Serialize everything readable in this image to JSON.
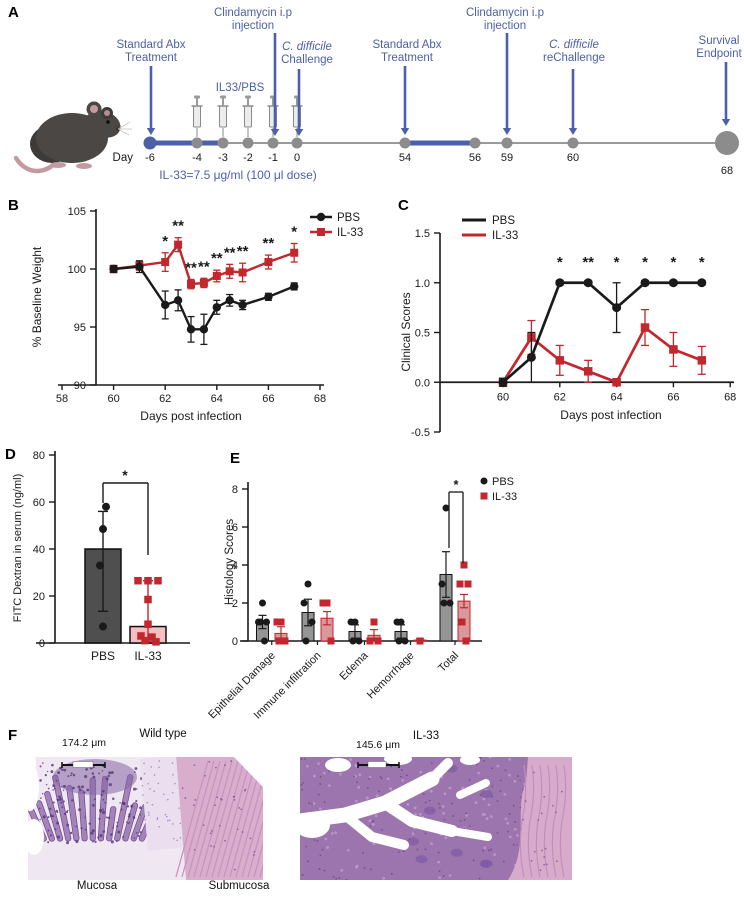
{
  "panels": {
    "a": "A",
    "b": "B",
    "c": "C",
    "d": "D",
    "e": "E",
    "f": "F"
  },
  "colors": {
    "blue": "#4C5FA8",
    "red": "#C1272D",
    "red_bar_fill": "#F4BFC3",
    "red_bar_fill_e": "#D88F93",
    "gray_bar": "#4F4F4F",
    "gray_bar_e": "#8C8C8C",
    "dot_gray": "#8C8C8C",
    "black": "#1A1A1A"
  },
  "panelA": {
    "day_axis_label": "Day",
    "syringe_group_label": "IL33/PBS",
    "dose_note": "IL-33=7.5 μg/ml (100 μl dose)",
    "timeline_days": [
      "-6",
      "-4",
      "-3",
      "-2",
      "-1",
      "0",
      "54",
      "56",
      "59",
      "60",
      "68"
    ],
    "syringe_days": [
      "-4",
      "-3",
      "-2",
      "-1",
      "0"
    ],
    "blue_segments": [
      [
        "-6",
        "-3"
      ],
      [
        "54",
        "56"
      ]
    ],
    "survival_day": "68",
    "events": [
      {
        "line1": "Standard Abx",
        "line2": "Treatment",
        "day": "-6",
        "italic1": false
      },
      {
        "line1": "Clindamycin i.p",
        "line2": "injection",
        "day": "-1",
        "italic1": false
      },
      {
        "line1": "C. difficile",
        "line2": "Challenge",
        "day": "0",
        "italic1": true
      },
      {
        "line1": "Standard Abx",
        "line2": "Treatment",
        "day": "54",
        "italic1": false
      },
      {
        "line1": "Clindamycin i.p",
        "line2": "injection",
        "day": "59",
        "italic1": false
      },
      {
        "line1": "C. difficile",
        "line2": "reChallenge",
        "day": "60",
        "italic1": true
      },
      {
        "line1": "Survival",
        "line2": "Endpoint",
        "day": "68",
        "italic1": false
      }
    ]
  },
  "chart_data": [
    {
      "id": "weight",
      "panel": "B",
      "type": "line",
      "xlabel": "Days post infection",
      "ylabel": "% Baseline Weight",
      "xlim": [
        58,
        68
      ],
      "ylim": [
        90,
        105
      ],
      "xticks": [
        58,
        60,
        62,
        64,
        66,
        68
      ],
      "xtick_labels": [
        "58",
        "60",
        "62",
        "64",
        "66",
        "68"
      ],
      "yticks": [
        90,
        95,
        100,
        105
      ],
      "ytick_labels": [
        "90",
        "95",
        "100",
        "105"
      ],
      "x": [
        60,
        61,
        62,
        62.5,
        63,
        63.5,
        64,
        64.5,
        65,
        66,
        67
      ],
      "series": [
        {
          "name": "PBS",
          "marker": "circle",
          "values": [
            100,
            100.2,
            96.9,
            97.3,
            94.8,
            94.8,
            96.7,
            97.3,
            96.9,
            97.6,
            98.5
          ],
          "err": [
            0.3,
            0.5,
            1.2,
            0.9,
            1.1,
            1.3,
            0.6,
            0.5,
            0.4,
            0.3,
            0.3
          ]
        },
        {
          "name": "IL-33",
          "marker": "square",
          "values": [
            100,
            100.3,
            100.6,
            102.1,
            98.7,
            98.8,
            99.4,
            99.8,
            99.7,
            100.6,
            101.4
          ],
          "err": [
            0.3,
            0.4,
            0.8,
            0.6,
            0.4,
            0.4,
            0.5,
            0.6,
            0.8,
            0.6,
            0.8
          ]
        }
      ],
      "significance": [
        {
          "x": 62,
          "label": "*"
        },
        {
          "x": 62.5,
          "label": "**"
        },
        {
          "x": 63,
          "label": "**"
        },
        {
          "x": 63.5,
          "label": "**"
        },
        {
          "x": 64,
          "label": "**"
        },
        {
          "x": 64.5,
          "label": "**"
        },
        {
          "x": 65,
          "label": "**"
        },
        {
          "x": 66,
          "label": "**"
        },
        {
          "x": 67,
          "label": "*"
        }
      ],
      "legend": [
        "PBS",
        "IL-33"
      ],
      "legend_position": "top-right",
      "grid": false
    },
    {
      "id": "clinical",
      "panel": "C",
      "type": "line",
      "xlabel": "Days post infection",
      "ylabel": "Clinical Scores",
      "xlim": [
        58.5,
        68
      ],
      "ylim": [
        -0.5,
        1.5
      ],
      "xticks": [
        60,
        62,
        64,
        66,
        68
      ],
      "xtick_labels": [
        "60",
        "62",
        "64",
        "66",
        "68"
      ],
      "yticks": [
        -0.5,
        0,
        0.5,
        1,
        1.5
      ],
      "ytick_labels": [
        "-0.5",
        "0.0",
        "0.5",
        "1.0",
        "1.5"
      ],
      "x": [
        60,
        61,
        62,
        63,
        64,
        65,
        66,
        67
      ],
      "series": [
        {
          "name": "PBS",
          "marker": "circle",
          "values": [
            0,
            0.25,
            1.0,
            1.0,
            0.75,
            1.0,
            1.0,
            1.0
          ],
          "err": [
            0.04,
            0.25,
            0.02,
            0.02,
            0.25,
            0.02,
            0.02,
            0.02
          ]
        },
        {
          "name": "IL-33",
          "marker": "square",
          "values": [
            0,
            0.45,
            0.22,
            0.11,
            0.0,
            0.55,
            0.33,
            0.22
          ],
          "err": [
            0.04,
            0.17,
            0.15,
            0.11,
            0.03,
            0.18,
            0.17,
            0.14
          ]
        }
      ],
      "significance": [
        {
          "x": 62,
          "label": "*"
        },
        {
          "x": 63,
          "label": "**"
        },
        {
          "x": 64,
          "label": "*"
        },
        {
          "x": 65,
          "label": "*"
        },
        {
          "x": 66,
          "label": "*"
        },
        {
          "x": 67,
          "label": "*"
        }
      ],
      "legend": [
        "PBS",
        "IL-33"
      ],
      "legend_position": "top-left",
      "grid": false
    },
    {
      "id": "fitc",
      "panel": "D",
      "type": "bar",
      "ylabel": "FITC Dextran in serum (ng/ml)",
      "ylim": [
        0,
        80
      ],
      "yticks": [
        0,
        20,
        40,
        60,
        80
      ],
      "ytick_labels": [
        "0",
        "20",
        "40",
        "60",
        "80"
      ],
      "categories": [
        "PBS",
        "IL-33"
      ],
      "bars": [
        {
          "name": "PBS",
          "mean": 40,
          "err_low": 13.5,
          "err_high": 56,
          "points": [
            58,
            48.5,
            33,
            7
          ],
          "marker": "circle"
        },
        {
          "name": "IL-33",
          "mean": 7,
          "err_low": 0.5,
          "err_high": 26.5,
          "points": [
            26.5,
            26.5,
            26.5,
            18.5,
            8,
            3,
            2.5,
            1,
            0.5
          ],
          "marker": "square"
        }
      ],
      "significance": {
        "label": "*"
      }
    },
    {
      "id": "histology",
      "panel": "E",
      "type": "grouped-bar",
      "ylabel": "Histology Scores",
      "ylim": [
        0,
        8
      ],
      "yticks": [
        0,
        2,
        4,
        6,
        8
      ],
      "ytick_labels": [
        "0",
        "2",
        "4",
        "6",
        "8"
      ],
      "categories": [
        "Epithelial Damage",
        "Immune infiltration",
        "Edema",
        "Hemorrhage",
        "Total"
      ],
      "series": [
        {
          "name": "PBS",
          "marker": "circle",
          "means": [
            1.0,
            1.5,
            0.5,
            0.5,
            3.5
          ],
          "err_high": [
            1.35,
            2.2,
            0.85,
            0.85,
            4.7
          ],
          "err_low": [
            0.65,
            0.8,
            0.15,
            0.15,
            2.3
          ],
          "points": [
            [
              2,
              1,
              1,
              1,
              0
            ],
            [
              3,
              2,
              1,
              0
            ],
            [
              1,
              1,
              0,
              0
            ],
            [
              1,
              1,
              0,
              0
            ],
            [
              7,
              3,
              2,
              2
            ]
          ]
        },
        {
          "name": "IL-33",
          "marker": "square",
          "means": [
            0.4,
            1.2,
            0.3,
            0.05,
            2.1
          ],
          "err_high": [
            0.75,
            1.55,
            0.6,
            0.12,
            2.45
          ],
          "err_low": [
            0.1,
            0.85,
            0.05,
            0,
            1.75
          ],
          "points": [
            [
              1,
              1,
              0,
              0
            ],
            [
              2,
              2,
              0
            ],
            [
              1,
              0,
              0
            ],
            [
              0
            ],
            [
              4,
              3,
              3,
              1,
              0
            ]
          ]
        }
      ],
      "significance": {
        "category": "Total",
        "label": "*"
      },
      "legend": [
        "PBS",
        "IL-33"
      ],
      "legend_position": "top-right"
    }
  ],
  "panelF": {
    "images": [
      {
        "title": "Wild type",
        "scale_text": "174.2 μm"
      },
      {
        "title": "IL-33",
        "scale_text": "145.6 μm"
      }
    ],
    "region_labels": [
      "Mucosa",
      "Submucosa"
    ]
  }
}
